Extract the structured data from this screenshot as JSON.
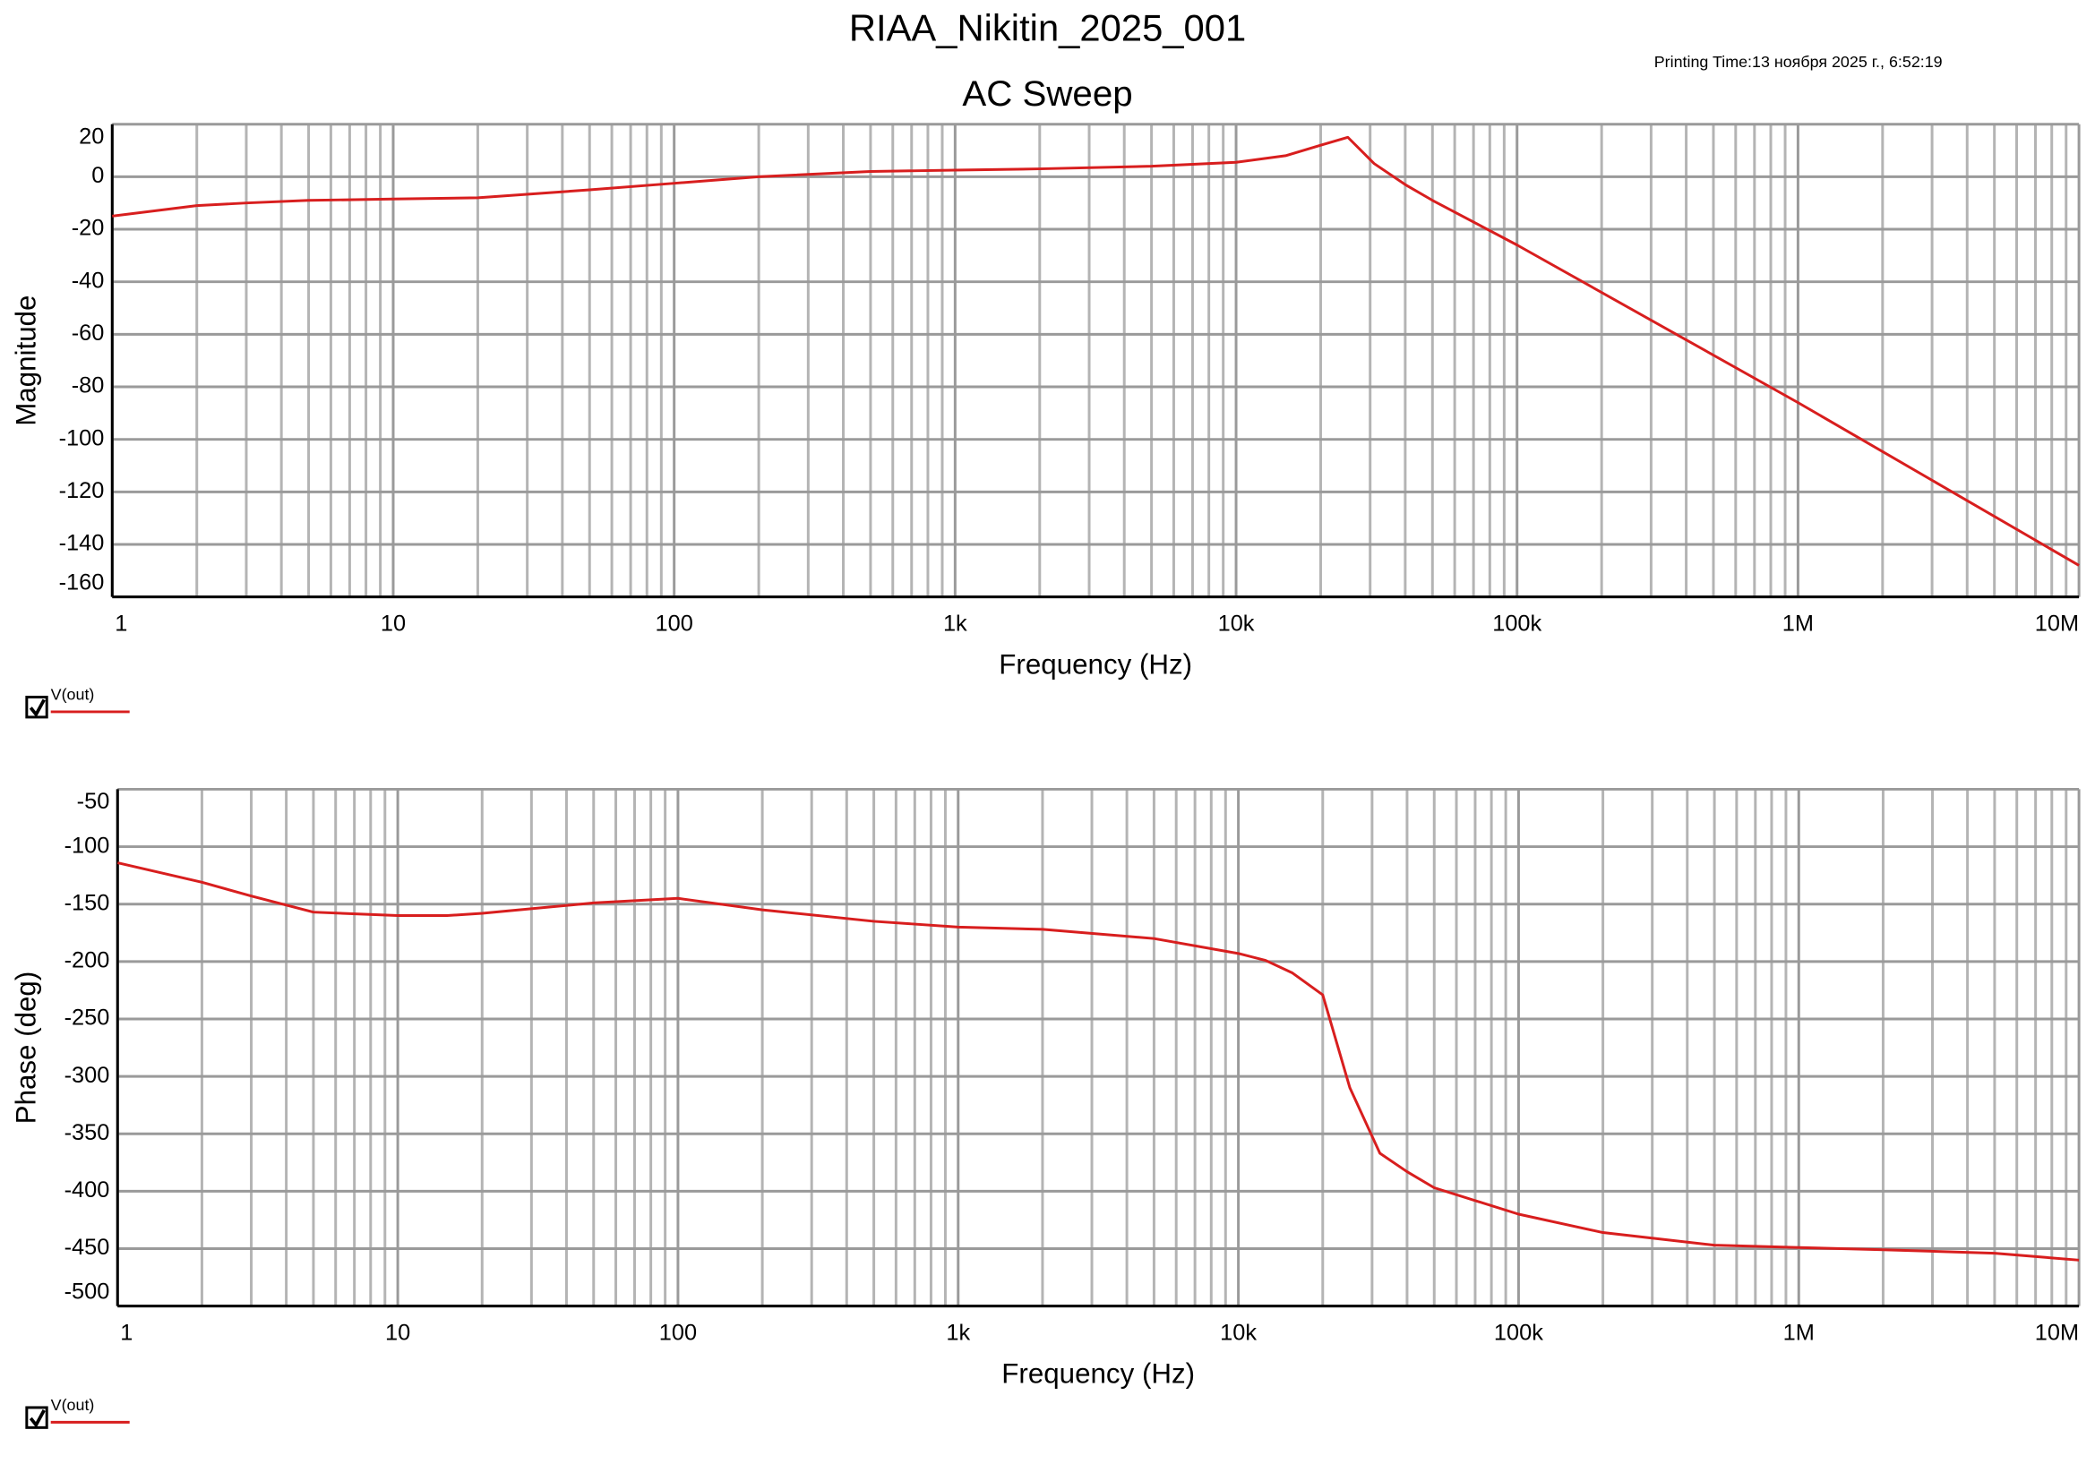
{
  "header": {
    "title": "RIAA_Nikitin_2025_001",
    "printing_time": "Printing Time:13 ноября 2025 г., 6:52:19",
    "subtitle": "AC Sweep"
  },
  "chart_data": [
    {
      "type": "line",
      "ylabel": "Magnitude",
      "xlabel": "Frequency (Hz)",
      "xscale": "log",
      "grid": true,
      "x": [
        1,
        2,
        3,
        5,
        10,
        20,
        50,
        100,
        200,
        500,
        1000,
        2000,
        5000,
        10000,
        15000,
        20000,
        25000,
        31000,
        40000,
        50000,
        100000,
        1000000,
        10000000
      ],
      "series": [
        {
          "name": "V(out)",
          "color": "#d81e1e",
          "values": [
            -15,
            -11,
            -10,
            -9,
            -8.5,
            -8,
            -5,
            -2.5,
            0,
            2,
            2.5,
            3,
            4,
            5.5,
            8,
            12,
            15,
            5,
            -3,
            -9,
            -26,
            -86,
            -148
          ]
        }
      ],
      "xlim": [
        1,
        10000000
      ],
      "ylim": [
        -160,
        20
      ],
      "xticks": [
        1,
        10,
        100,
        {
          "value": 1000,
          "label": "1k"
        },
        {
          "value": 10000,
          "label": "10k"
        },
        {
          "value": 100000,
          "label": "100k"
        },
        {
          "value": 1000000,
          "label": "1M"
        },
        {
          "value": 10000000,
          "label": "10M"
        }
      ],
      "xminorticks": [
        2,
        3,
        4,
        5,
        6,
        7,
        8,
        9,
        20,
        30,
        40,
        50,
        60,
        70,
        80,
        90,
        200,
        300,
        400,
        500,
        600,
        700,
        800,
        900,
        2000,
        3000,
        4000,
        5000,
        6000,
        7000,
        8000,
        9000,
        20000,
        30000,
        40000,
        50000,
        60000,
        70000,
        80000,
        90000,
        200000,
        300000,
        400000,
        500000,
        600000,
        700000,
        800000,
        900000,
        2000000,
        3000000,
        4000000,
        5000000,
        6000000,
        7000000,
        8000000,
        9000000
      ],
      "yticks": [
        20,
        0,
        -20,
        -40,
        -60,
        -80,
        -100,
        -120,
        -140,
        -160
      ]
    },
    {
      "type": "line",
      "ylabel": "Phase (deg)",
      "xlabel": "Frequency (Hz)",
      "xscale": "log",
      "grid": true,
      "x": [
        1,
        2,
        3,
        5,
        10,
        15,
        20,
        50,
        100,
        200,
        500,
        1000,
        2000,
        5000,
        10000,
        12500,
        15600,
        20000,
        25000,
        32000,
        40000,
        50000,
        100000,
        200000,
        500000,
        1000000,
        2000000,
        5000000,
        10000000
      ],
      "series": [
        {
          "name": "V(out)",
          "color": "#d81e1e",
          "values": [
            -114,
            -131,
            -143,
            -157,
            -160,
            -160,
            -158,
            -149,
            -145,
            -155,
            -165,
            -170,
            -172,
            -180,
            -193,
            -199,
            -210,
            -229,
            -310,
            -367,
            -383,
            -397,
            -420,
            -436,
            -447,
            -449,
            -451,
            -454,
            -460
          ]
        }
      ],
      "xlim": [
        1,
        10000000
      ],
      "ylim": [
        -500,
        -50
      ],
      "xticks": [
        1,
        10,
        100,
        {
          "value": 1000,
          "label": "1k"
        },
        {
          "value": 10000,
          "label": "10k"
        },
        {
          "value": 100000,
          "label": "100k"
        },
        {
          "value": 1000000,
          "label": "1M"
        },
        {
          "value": 10000000,
          "label": "10M"
        }
      ],
      "xminorticks": [
        2,
        3,
        4,
        5,
        6,
        7,
        8,
        9,
        20,
        30,
        40,
        50,
        60,
        70,
        80,
        90,
        200,
        300,
        400,
        500,
        600,
        700,
        800,
        900,
        2000,
        3000,
        4000,
        5000,
        6000,
        7000,
        8000,
        9000,
        20000,
        30000,
        40000,
        50000,
        60000,
        70000,
        80000,
        90000,
        200000,
        300000,
        400000,
        500000,
        600000,
        700000,
        800000,
        900000,
        2000000,
        3000000,
        4000000,
        5000000,
        6000000,
        7000000,
        8000000,
        9000000
      ],
      "yticks": [
        -50,
        -100,
        -150,
        -200,
        -250,
        -300,
        -350,
        -400,
        -450,
        -500
      ]
    }
  ]
}
